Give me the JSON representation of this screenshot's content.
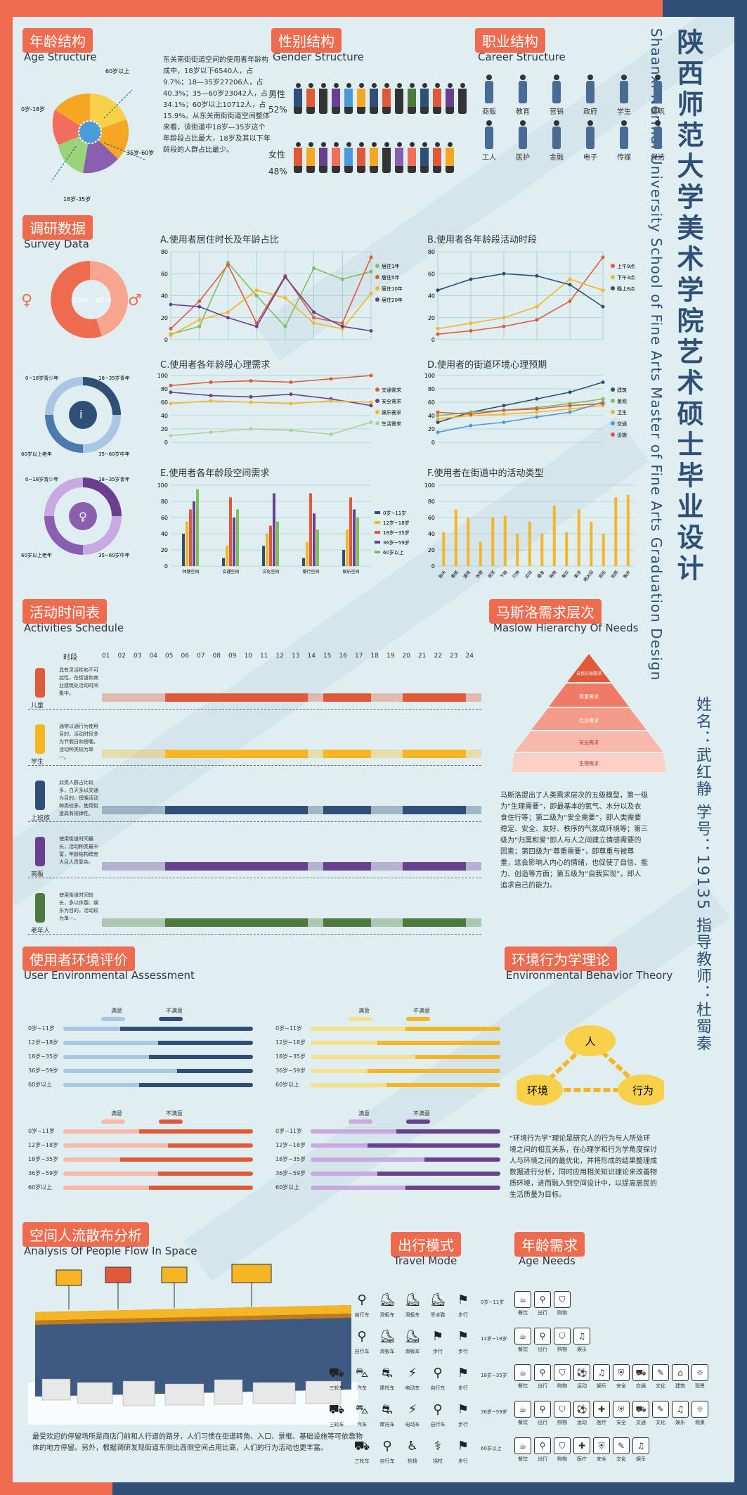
{
  "header": {
    "title_zh": "陕西师范大学美术学院艺术硕士毕业设计",
    "title_en": "Shaanxi Normal University School of Fine Arts Master of Fine Arts Graduation Design",
    "info": "姓名：武红静  学号：19135  指导教师：杜蜀秦"
  },
  "age": {
    "title": "年龄结构",
    "subtitle": "Age Structure",
    "text": "东关南街街道空间的使用者年龄构成中，18岁以下6540人，占9.7%；18—35岁27206人，占40.3%；35—60岁23042人，占34.1%；60岁以上10712人，占15.9%。从东关南街街道空间整体来看，该街道中18岁—35岁这个年龄段占比最大，18岁及其以下年龄段的人群占比最少。",
    "labels": [
      "60岁以上",
      "0岁-18岁",
      "18岁-35岁",
      "35岁-60岁"
    ],
    "colors": [
      "#f6a623",
      "#f26d5b",
      "#9ad37a",
      "#8a5fb0",
      "#4c9bd9",
      "#f8d04a"
    ]
  },
  "gender": {
    "title": "性别结构",
    "subtitle": "Gender Structure",
    "male_label": "男性",
    "male_pct": "52%",
    "female_label": "女性",
    "female_pct": "48%"
  },
  "career": {
    "title": "职业结构",
    "subtitle": "Career Structure",
    "items": [
      "商贩",
      "教育",
      "营销",
      "政府",
      "学生",
      "建筑",
      "工人",
      "医护",
      "金融",
      "电子",
      "传媒",
      "保洁"
    ]
  },
  "survey": {
    "title": "调研数据",
    "subtitle": "Survey Data",
    "donut1": {
      "left": "55%",
      "right": "45%"
    },
    "donut2_labels": [
      "0~18岁青少年",
      "18~35岁青年",
      "35~60岁中年",
      "60岁以上老年"
    ],
    "donut3_labels": [
      "0~18岁青少年",
      "18~35岁青年",
      "35~60岁中年",
      "60岁以上老年"
    ]
  },
  "chart_data": [
    {
      "type": "line",
      "title": "A.使用者居住时长及年龄占比",
      "x": [
        1,
        2,
        3,
        4,
        5,
        6,
        7,
        8
      ],
      "ylim": [
        0,
        80
      ],
      "yticks": [
        0,
        20,
        40,
        60,
        80
      ],
      "series": [
        {
          "name": "居住1年",
          "values": [
            5,
            12,
            70,
            40,
            12,
            65,
            55,
            62
          ],
          "color": "#7dbf5c"
        },
        {
          "name": "居住5年",
          "values": [
            10,
            35,
            68,
            15,
            58,
            20,
            15,
            75
          ],
          "color": "#e05a3a"
        },
        {
          "name": "居住10年",
          "values": [
            4,
            18,
            25,
            45,
            38,
            15,
            10,
            42
          ],
          "color": "#f6b623"
        },
        {
          "name": "居住20年",
          "values": [
            32,
            30,
            20,
            12,
            57,
            25,
            12,
            8
          ],
          "color": "#6a3f8f"
        }
      ]
    },
    {
      "type": "line",
      "title": "B.使用者各年龄段活动时段",
      "x": [
        1,
        2,
        3,
        4,
        5,
        6
      ],
      "ylim": [
        0,
        80
      ],
      "yticks": [
        0,
        20,
        40,
        60,
        80
      ],
      "series": [
        {
          "name": "上午9点",
          "values": [
            5,
            8,
            12,
            18,
            35,
            75
          ],
          "color": "#e05a3a"
        },
        {
          "name": "下午3点",
          "values": [
            10,
            15,
            20,
            30,
            55,
            45
          ],
          "color": "#f6b623"
        },
        {
          "name": "晚上8点",
          "values": [
            45,
            55,
            60,
            58,
            50,
            30
          ],
          "color": "#2f4f77"
        }
      ]
    },
    {
      "type": "line",
      "title": "C.使用者各年龄段心理需求",
      "x": [
        1,
        2,
        3,
        4,
        5,
        6
      ],
      "ylim": [
        0,
        100
      ],
      "yticks": [
        0,
        20,
        40,
        60,
        80,
        100
      ],
      "series": [
        {
          "name": "交通需求",
          "values": [
            85,
            90,
            92,
            90,
            95,
            100
          ],
          "color": "#e05a3a"
        },
        {
          "name": "安全需求",
          "values": [
            75,
            70,
            68,
            72,
            65,
            55
          ],
          "color": "#6a3f8f"
        },
        {
          "name": "娱乐需求",
          "values": [
            58,
            62,
            60,
            58,
            62,
            60
          ],
          "color": "#f6b623"
        },
        {
          "name": "生活需求",
          "values": [
            10,
            15,
            20,
            18,
            12,
            30
          ],
          "color": "#aad29a"
        }
      ]
    },
    {
      "type": "line",
      "title": "D.使用者的街道环境心理预期",
      "x": [
        1,
        2,
        3,
        4,
        5,
        6
      ],
      "ylim": [
        0,
        100
      ],
      "yticks": [
        0,
        20,
        40,
        60,
        80,
        100
      ],
      "series": [
        {
          "name": "建筑",
          "values": [
            30,
            45,
            55,
            65,
            75,
            90
          ],
          "color": "#2f4f77"
        },
        {
          "name": "景观",
          "values": [
            40,
            45,
            48,
            52,
            58,
            65
          ],
          "color": "#7dbf5c"
        },
        {
          "name": "卫生",
          "values": [
            35,
            40,
            42,
            45,
            50,
            55
          ],
          "color": "#f6b623"
        },
        {
          "name": "交通",
          "values": [
            15,
            25,
            30,
            38,
            45,
            60
          ],
          "color": "#4c9bd9"
        },
        {
          "name": "设施",
          "values": [
            45,
            42,
            48,
            50,
            55,
            58
          ],
          "color": "#e05a3a"
        }
      ]
    },
    {
      "type": "bar",
      "title": "E.使用者各年龄段空间需求",
      "categories": [
        "休憩空间",
        "交通空间",
        "文化空间",
        "慢行空间",
        "娱乐空间"
      ],
      "ylim": [
        0,
        100
      ],
      "yticks": [
        0,
        20,
        40,
        60,
        80,
        100
      ],
      "series": [
        {
          "name": "0岁~11岁",
          "values": [
            40,
            10,
            25,
            10,
            20
          ],
          "color": "#2f4f77"
        },
        {
          "name": "12岁~18岁",
          "values": [
            55,
            25,
            40,
            30,
            45
          ],
          "color": "#f6b623"
        },
        {
          "name": "18岁~35岁",
          "values": [
            70,
            85,
            50,
            90,
            85
          ],
          "color": "#e05a3a"
        },
        {
          "name": "36岁~59岁",
          "values": [
            80,
            60,
            90,
            65,
            70
          ],
          "color": "#6a3f8f"
        },
        {
          "name": "60岁以上",
          "values": [
            95,
            70,
            55,
            45,
            60
          ],
          "color": "#7dbf5c"
        }
      ]
    },
    {
      "type": "bar",
      "title": "F.使用者在街道中的活动类型",
      "categories": [
        "聊天",
        "看报",
        "遛弯",
        "休憩",
        "观赏",
        "下棋",
        "打牌",
        "运动",
        "健身",
        "购物",
        "餐饮",
        "乘凉",
        "晒太阳",
        "逛街",
        "拍照",
        "散步"
      ],
      "ylim": [
        0,
        100
      ],
      "yticks": [
        0,
        20,
        40,
        60,
        80,
        100
      ],
      "series": [
        {
          "name": "活动",
          "values": [
            42,
            70,
            60,
            30,
            60,
            62,
            40,
            55,
            40,
            75,
            42,
            70,
            55,
            40,
            85,
            88
          ],
          "color": "#f6b623"
        }
      ]
    }
  ],
  "schedule": {
    "title": "活动时间表",
    "subtitle": "Activities Schedule",
    "hour_header": "时段",
    "hours": [
      "01",
      "02",
      "03",
      "04",
      "05",
      "06",
      "07",
      "08",
      "09",
      "10",
      "11",
      "12",
      "13",
      "14",
      "15",
      "16",
      "17",
      "18",
      "19",
      "20",
      "21",
      "22",
      "23",
      "24"
    ],
    "rows": [
      {
        "label": "儿童",
        "desc": "具有灵活性和不可控性，在街道和商业建筑处活动时间集中。",
        "color": "#e05a3a"
      },
      {
        "label": "学生",
        "desc": "通常以通行为使用目的，活动时段多为节假日和傍晚，活动种类较为单一。",
        "color": "#f6b623"
      },
      {
        "label": "上班族",
        "desc": "此类人群占比较多，白天多以交通为目的，傍晚活动种类较多，使用街道具有规律性。",
        "color": "#2f4f77"
      },
      {
        "label": "商贩",
        "desc": "使用街道时间最长，活动种类最丰富，年龄结构跨度大且人员复杂。",
        "color": "#6a3f8f"
      },
      {
        "label": "老年人",
        "desc": "使用街道时间较长，多以休憩、娱乐为目的，活动较为单一。",
        "color": "#4c7a3c"
      }
    ]
  },
  "maslow": {
    "title": "马斯洛需求层次",
    "subtitle": "Maslow Hierarchy Of Needs",
    "levels": [
      "自我实现需求",
      "尊重需求",
      "社交需求",
      "安全需求",
      "生理需求"
    ],
    "text": "马斯洛提出了人类需求层次的五级模型，第一级为“生理需要”，即最基本的氧气、水分以及衣食住行等；第二级为“安全需要”，即人类需要稳定、安全、友好、秩序的气氛或环境等；第三级为“归属和爱”即人与人之间建立情感需要的因素；第四级为“尊重需要”，即尊重与被尊重，这会影响人内心的情绪，也促使了自信、能力、创造等方面；第五级为“自我实现”，即人追求自己的能力。"
  },
  "assessment": {
    "title": "使用者环境评价",
    "subtitle": "User Environmental Assessment",
    "sat": "满意",
    "unsat": "不满意",
    "ages": [
      "0岁~11岁",
      "12岁~18岁",
      "18岁~35岁",
      "36岁~59岁",
      "60岁以上"
    ]
  },
  "behavior": {
    "title": "环境行为学理论",
    "subtitle": "Environmental Behavior Theory",
    "nodes": [
      "人",
      "环境",
      "行为"
    ],
    "text": "“环境行为学”理论是研究人的行为与人所处环境之间的相互关系，在心理学和行为学角度探讨人与环境之间的最优化，并将形成的结果整理成数据进行分析，同时应用相关知识理论来改善物质环境，进而融入到空间设计中，以提高居民的生活质量为目标。"
  },
  "flow": {
    "title": "空间人流散布分析",
    "subtitle": "Analysis Of People Flow In Space",
    "text": "最受欢迎的停留场所是商店门前和人行道的路牙，人们习惯在街道转角、入口、景框、基础设施等可依靠物体的地方停留。另外，根据调研发现街道东侧比西侧空间占用比高，人们的行为活动也更丰富。"
  },
  "travel": {
    "title": "出行模式",
    "subtitle": "Travel Mode",
    "rows": [
      {
        "age": "0岁~11岁",
        "modes": [
          "自行车",
          "滑板车",
          "滑板车",
          "旱冰鞋",
          "步行"
        ]
      },
      {
        "age": "12岁~18岁",
        "modes": [
          "自行车",
          "滑板车",
          "滑板车",
          "步行",
          "步行"
        ]
      },
      {
        "age": "18岁~35岁",
        "modes": [
          "三轮车",
          "汽车",
          "摩托车",
          "电动车",
          "自行车",
          "步行"
        ]
      },
      {
        "age": "36岁~59岁",
        "modes": [
          "三轮车",
          "汽车",
          "摩托车",
          "电动车",
          "自行车",
          "步行"
        ]
      },
      {
        "age": "60岁以上",
        "modes": [
          "三轮车",
          "自行车",
          "轮椅",
          "拐杖",
          "步行"
        ]
      }
    ]
  },
  "needs": {
    "title": "年龄需求",
    "subtitle": "Age Needs",
    "rows": [
      [
        "餐饮",
        "出行",
        "购物"
      ],
      [
        "餐饮",
        "出行",
        "购物",
        "娱乐"
      ],
      [
        "餐饮",
        "出行",
        "购物",
        "运动",
        "娱乐",
        "安全",
        "交通",
        "文化",
        "建筑",
        "观景"
      ],
      [
        "餐饮",
        "出行",
        "购物",
        "运动",
        "医疗",
        "安全",
        "交通",
        "文化",
        "娱乐",
        "观景"
      ],
      [
        "餐饮",
        "出行",
        "购物",
        "医疗",
        "安全",
        "文化",
        "娱乐"
      ]
    ]
  }
}
